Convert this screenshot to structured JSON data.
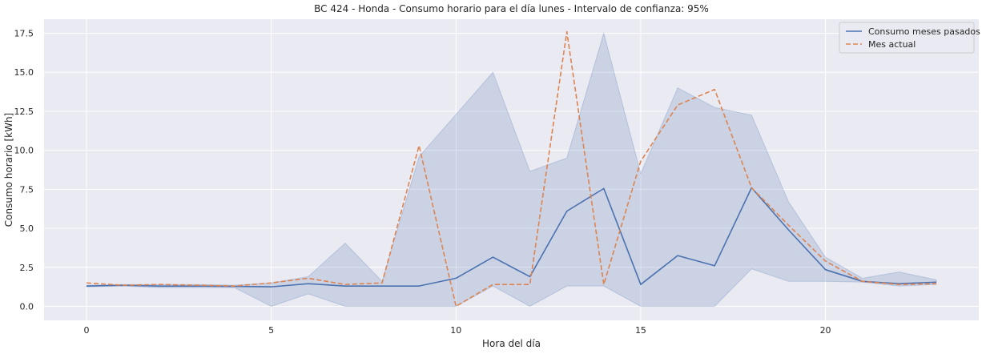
{
  "chart_data": {
    "type": "line",
    "title": "BC 424 - Honda - Consumo horario para el día lunes - Intervalo de confianza: 95%",
    "xlabel": "Hora del día",
    "ylabel": "Consumo horario [kWh]",
    "xlim": [
      -1.15,
      24.15
    ],
    "ylim": [
      -0.9,
      18.4
    ],
    "xticks": [
      0,
      5,
      10,
      15,
      20
    ],
    "yticks": [
      0.0,
      2.5,
      5.0,
      7.5,
      10.0,
      12.5,
      15.0,
      17.5
    ],
    "xtick_labels": [
      "0",
      "5",
      "10",
      "15",
      "20"
    ],
    "ytick_labels": [
      "0.0",
      "2.5",
      "5.0",
      "7.5",
      "10.0",
      "12.5",
      "15.0",
      "17.5"
    ],
    "grid": true,
    "legend_position": "top-right",
    "x": [
      0,
      1,
      2,
      3,
      4,
      5,
      6,
      7,
      8,
      9,
      10,
      11,
      12,
      13,
      14,
      15,
      16,
      17,
      18,
      19,
      20,
      21,
      22,
      23
    ],
    "series": [
      {
        "name": "Consumo meses pasados",
        "color": "#4c72b0",
        "style": "solid",
        "values": [
          1.3,
          1.35,
          1.3,
          1.3,
          1.28,
          1.25,
          1.45,
          1.3,
          1.3,
          1.3,
          1.8,
          3.15,
          1.9,
          6.1,
          7.55,
          1.4,
          3.25,
          2.6,
          7.6,
          4.9,
          2.35,
          1.6,
          1.45,
          1.55
        ],
        "ci_lower": [
          1.25,
          1.3,
          1.2,
          1.2,
          1.2,
          0.0,
          0.8,
          0.0,
          0.0,
          0.0,
          0.0,
          1.3,
          0.0,
          1.3,
          1.3,
          0.0,
          0.0,
          0.0,
          2.4,
          1.6,
          1.6,
          1.55,
          1.3,
          1.4
        ],
        "ci_upper": [
          1.35,
          1.4,
          1.4,
          1.4,
          1.35,
          1.5,
          1.9,
          4.05,
          1.6,
          9.6,
          12.3,
          15.0,
          8.65,
          9.5,
          17.5,
          8.5,
          14.0,
          12.75,
          12.25,
          6.7,
          3.15,
          1.8,
          2.2,
          1.7
        ]
      },
      {
        "name": "Mes actual",
        "color": "#dd8452",
        "style": "dashed",
        "values": [
          1.5,
          1.35,
          1.4,
          1.35,
          1.3,
          1.5,
          1.8,
          1.4,
          1.5,
          10.3,
          0.0,
          1.4,
          1.4,
          17.6,
          1.4,
          9.3,
          12.9,
          13.9,
          7.6,
          5.2,
          2.9,
          1.6,
          1.4,
          1.45
        ]
      }
    ]
  }
}
